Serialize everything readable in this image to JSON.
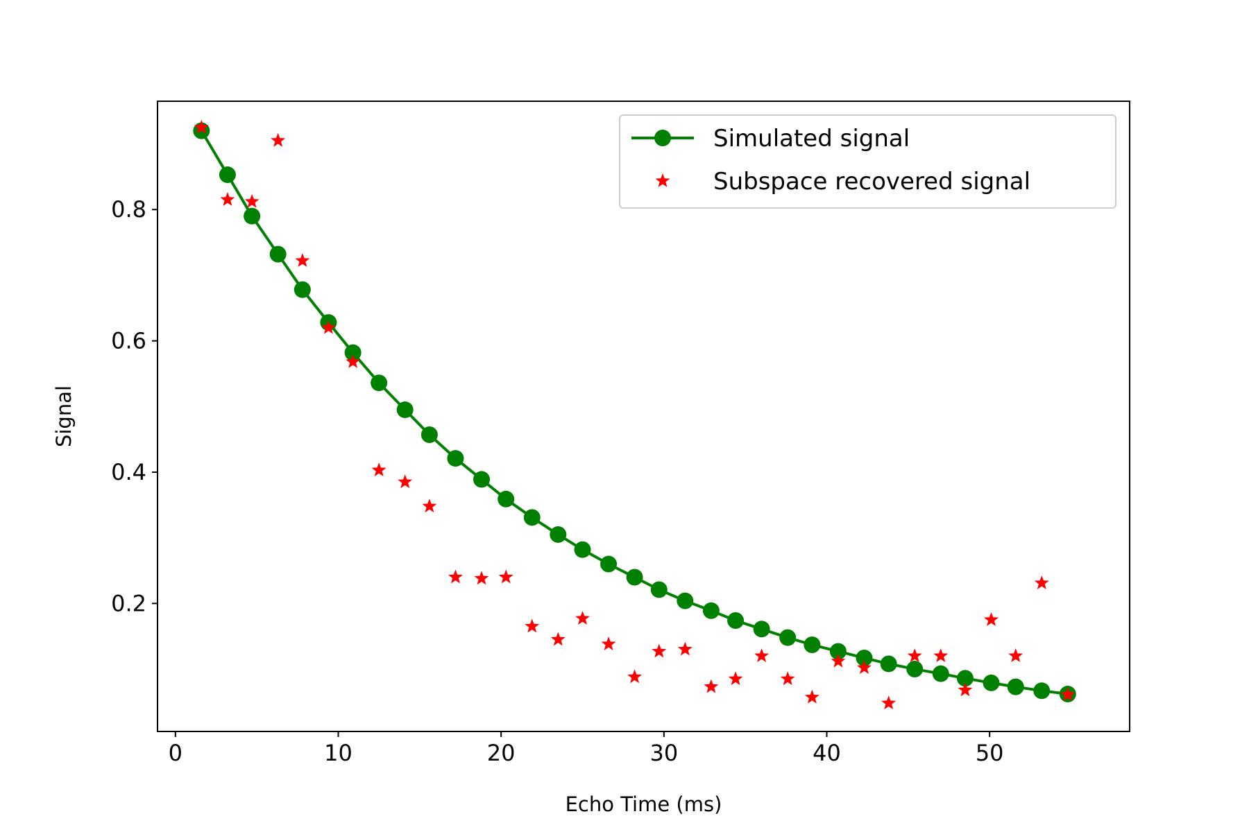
{
  "chart_data": {
    "type": "line",
    "title": "",
    "xlabel": "Echo Time (ms)",
    "ylabel": "Signal",
    "xlim": [
      -1.1,
      58.6
    ],
    "ylim": [
      0.005,
      0.965
    ],
    "xticks": [
      0,
      10,
      20,
      30,
      40,
      50
    ],
    "yticks": [
      0.2,
      0.4,
      0.6,
      0.8
    ],
    "xtick_labels": [
      "0",
      "10",
      "20",
      "30",
      "40",
      "50"
    ],
    "ytick_labels": [
      "0.2",
      "0.4",
      "0.6",
      "0.8"
    ],
    "grid": false,
    "legend_position": "top-right",
    "x": [
      1.6,
      3.2,
      4.7,
      6.3,
      7.8,
      9.4,
      10.9,
      12.5,
      14.1,
      15.6,
      17.2,
      18.8,
      20.3,
      21.9,
      23.5,
      25.0,
      26.6,
      28.2,
      29.7,
      31.3,
      32.9,
      34.4,
      36.0,
      37.6,
      39.1,
      40.7,
      42.3,
      43.8,
      45.4,
      47.0,
      48.5,
      50.1,
      51.6,
      53.2,
      54.8
    ],
    "series": [
      {
        "name": "Simulated signal",
        "style": "line-with-circle-markers",
        "color": "#008000",
        "values": [
          0.92,
          0.853,
          0.79,
          0.732,
          0.678,
          0.628,
          0.582,
          0.536,
          0.495,
          0.457,
          0.421,
          0.389,
          0.359,
          0.331,
          0.305,
          0.282,
          0.26,
          0.24,
          0.221,
          0.204,
          0.189,
          0.174,
          0.161,
          0.148,
          0.137,
          0.127,
          0.117,
          0.108,
          0.1,
          0.093,
          0.086,
          0.079,
          0.073,
          0.067,
          0.062
        ]
      },
      {
        "name": "Subspace recovered signal",
        "style": "star-markers",
        "color": "#ff0000",
        "values": [
          0.925,
          0.815,
          0.812,
          0.905,
          0.722,
          0.62,
          0.568,
          0.403,
          0.385,
          0.348,
          0.24,
          0.238,
          0.24,
          0.165,
          0.145,
          0.177,
          0.138,
          0.088,
          0.127,
          0.13,
          0.073,
          0.085,
          0.12,
          0.085,
          0.057,
          0.112,
          0.102,
          0.048,
          0.12,
          0.12,
          0.068,
          0.175,
          0.12,
          0.231,
          0.061
        ]
      }
    ]
  }
}
